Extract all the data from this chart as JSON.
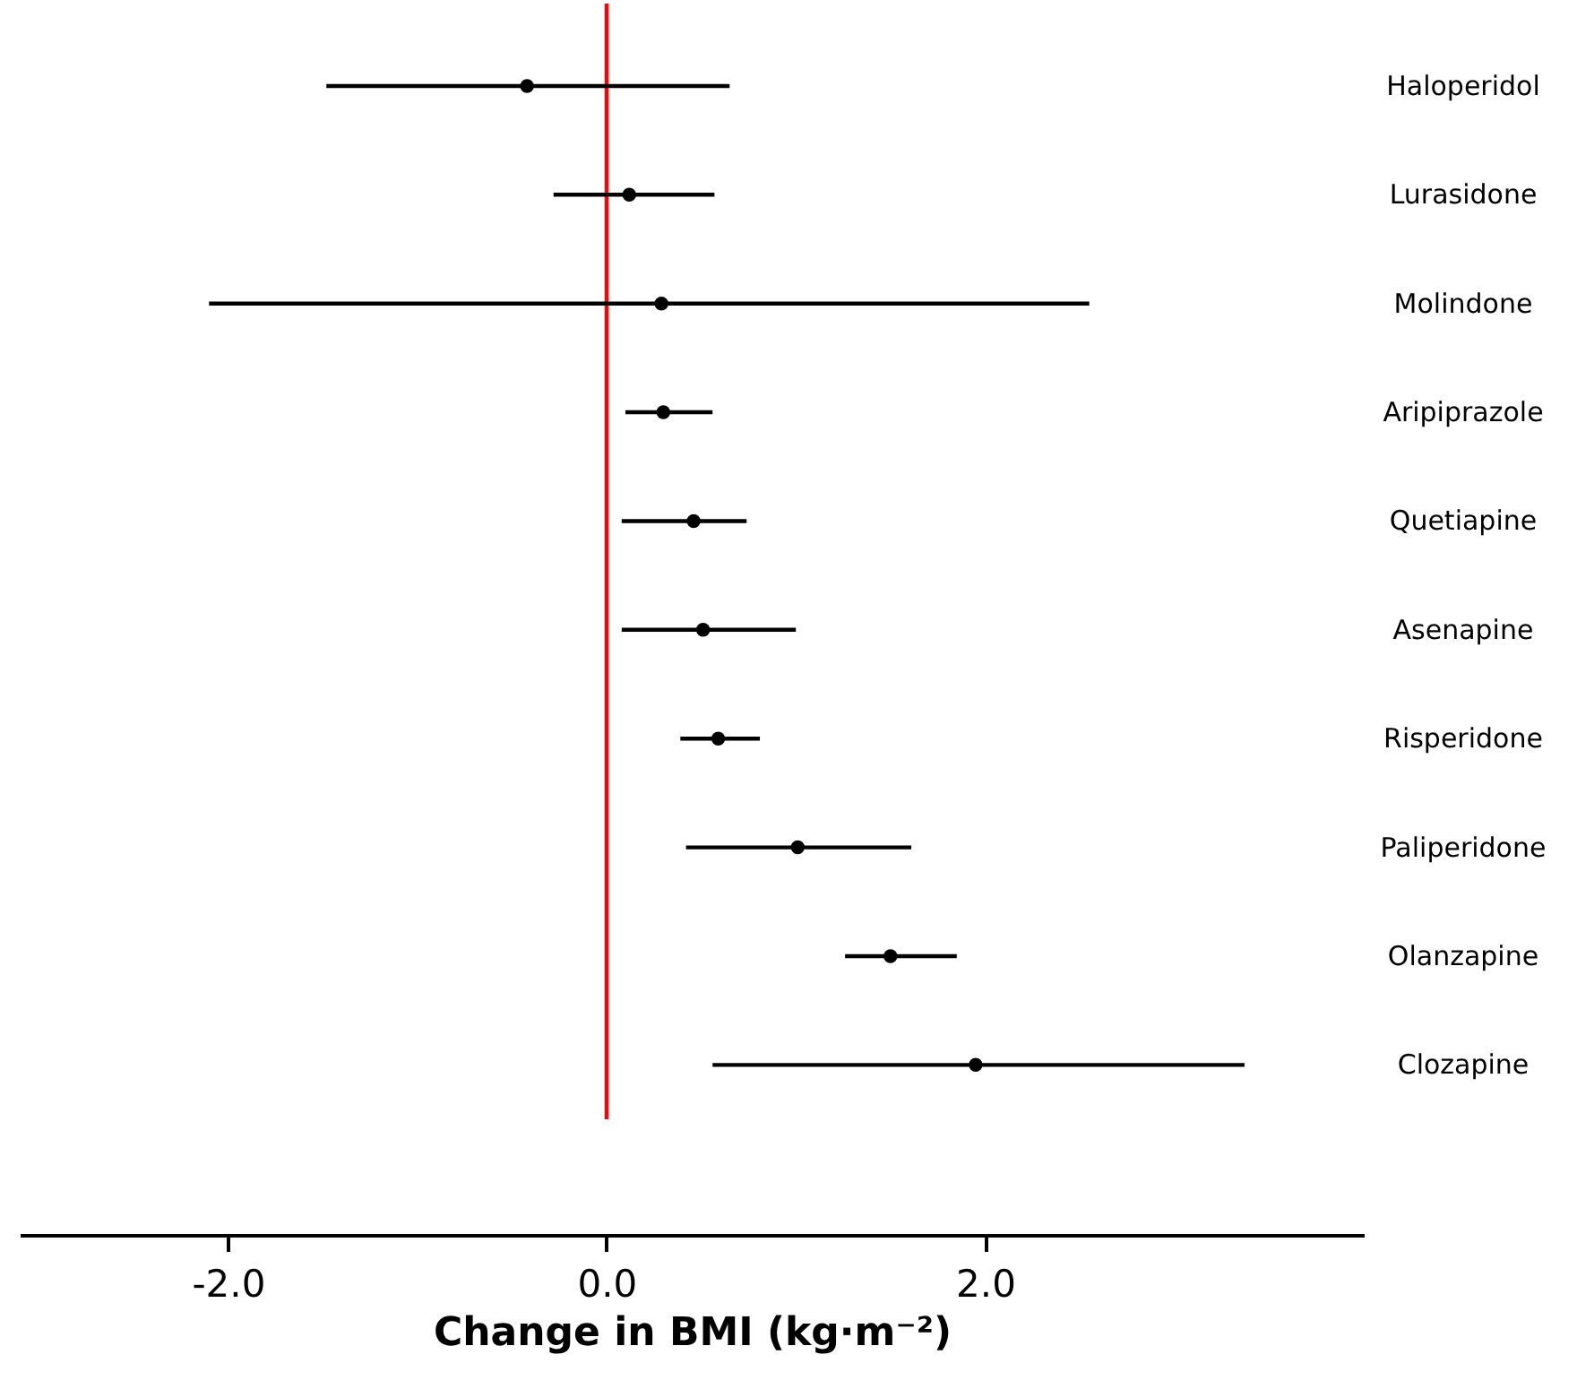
{
  "chart_data": {
    "type": "scatter",
    "orientation": "horizontal",
    "xlabel": "Change in BMI (kg·m⁻²)",
    "categories": [
      "Haloperidol",
      "Lurasidone",
      "Molindone",
      "Aripiprazole",
      "Quetiapine",
      "Asenapine",
      "Risperidone",
      "Paliperidone",
      "Olanzapine",
      "Clozapine"
    ],
    "values": [
      -0.42,
      0.12,
      0.29,
      0.3,
      0.46,
      0.51,
      0.59,
      1.01,
      1.5,
      1.95
    ],
    "errors": [
      [
        -1.48,
        0.65
      ],
      [
        -0.28,
        0.57
      ],
      [
        -2.1,
        2.55
      ],
      [
        0.1,
        0.56
      ],
      [
        0.08,
        0.74
      ],
      [
        0.08,
        1.0
      ],
      [
        0.39,
        0.81
      ],
      [
        0.42,
        1.61
      ],
      [
        1.26,
        1.85
      ],
      [
        0.56,
        3.37
      ]
    ],
    "color": "#000000",
    "marker": "circle",
    "grid": false,
    "xlim": [
      -3.1,
      4.0
    ],
    "xticks": [
      {
        "value": -2,
        "label": "-2.0"
      },
      {
        "value": 0,
        "label": "0.0"
      },
      {
        "value": 2,
        "label": "2.0"
      }
    ],
    "ref_lines": [
      {
        "axis": "x",
        "value": 0,
        "label": null,
        "color": "#ff0000"
      }
    ]
  }
}
